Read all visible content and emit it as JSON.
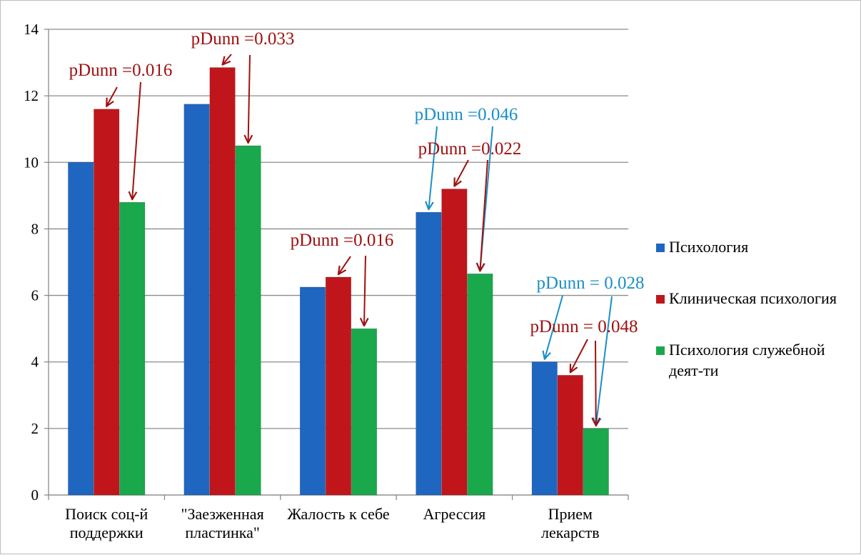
{
  "chart_data": {
    "type": "bar",
    "title": "",
    "xlabel": "",
    "ylabel": "",
    "ylim": [
      0,
      14
    ],
    "yticks": [
      0,
      2,
      4,
      6,
      8,
      10,
      12,
      14
    ],
    "grid": true,
    "legend_position": "right",
    "categories": [
      [
        "Поиск соц-й",
        "поддержки"
      ],
      [
        "\"Заезженная",
        "пластинка\""
      ],
      [
        "Жалость к себе"
      ],
      [
        "Агрессия"
      ],
      [
        "Прием",
        "лекарств"
      ]
    ],
    "series": [
      {
        "name": "Психология",
        "color": "#1f66c1",
        "values": [
          10.0,
          11.75,
          6.25,
          8.5,
          4.0
        ]
      },
      {
        "name": "Клиническая психология",
        "color": "#c0161b",
        "values": [
          11.6,
          12.85,
          6.55,
          9.2,
          3.6
        ]
      },
      {
        "name": [
          "Психология служебной",
          "деят-ти"
        ],
        "color": "#1aa84c",
        "values": [
          8.8,
          10.5,
          5.0,
          6.65,
          2.0
        ]
      }
    ],
    "annotations": [
      {
        "text": "pDunn =0.016",
        "color": "#a01010",
        "category": 0,
        "arrows": [
          1,
          2
        ]
      },
      {
        "text": "pDunn =0.033",
        "color": "#a01010",
        "category": 1,
        "arrows": [
          1,
          2
        ]
      },
      {
        "text": "pDunn =0.016",
        "color": "#a01010",
        "category": 2,
        "arrows": [
          1,
          2
        ]
      },
      {
        "text": "pDunn =0.046",
        "color": "#1a8fc7",
        "category": 3,
        "arrows": [
          0,
          2
        ]
      },
      {
        "text": "pDunn =0.022",
        "color": "#a01010",
        "category": 3,
        "arrows": [
          1,
          2
        ]
      },
      {
        "text": "pDunn = 0.028",
        "color": "#1a8fc7",
        "category": 4,
        "arrows": [
          0,
          2
        ]
      },
      {
        "text": "pDunn = 0.048",
        "color": "#a01010",
        "category": 4,
        "arrows": [
          1,
          2
        ]
      }
    ]
  }
}
